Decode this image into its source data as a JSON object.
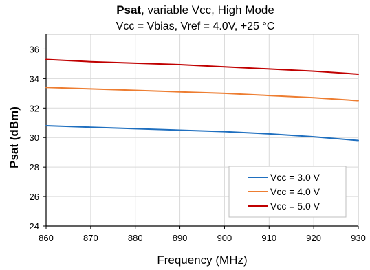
{
  "chart_data": {
    "type": "line",
    "title_bold": "Psat",
    "title_rest": ", variable Vcc, High Mode",
    "subtitle": "Vcc = Vbias, Vref = 4.0V, +25 °C",
    "xlabel": "Frequency (MHz)",
    "ylabel": "Psat (dBm)",
    "xlim": [
      860,
      930
    ],
    "ylim": [
      24,
      37
    ],
    "xticks": [
      860,
      870,
      880,
      890,
      900,
      910,
      920,
      930
    ],
    "yticks": [
      24,
      26,
      28,
      30,
      32,
      34,
      36
    ],
    "xtick_labels": [
      "860",
      "870",
      "880",
      "890",
      "900",
      "910",
      "920",
      "930"
    ],
    "ytick_labels": [
      "24",
      "26",
      "28",
      "30",
      "32",
      "34",
      "36"
    ],
    "grid": true,
    "legend_position": "bottom-right",
    "x": [
      860,
      870,
      880,
      890,
      900,
      910,
      920,
      930
    ],
    "series": [
      {
        "name": "Vcc = 3.0 V",
        "color": "#1f6fbf",
        "values": [
          30.8,
          30.7,
          30.6,
          30.5,
          30.4,
          30.25,
          30.05,
          29.8
        ]
      },
      {
        "name": "Vcc = 4.0 V",
        "color": "#ed7d31",
        "values": [
          33.4,
          33.3,
          33.2,
          33.1,
          33.0,
          32.85,
          32.7,
          32.5
        ]
      },
      {
        "name": "Vcc = 5.0 V",
        "color": "#c00000",
        "values": [
          35.3,
          35.15,
          35.05,
          34.95,
          34.8,
          34.65,
          34.5,
          34.3
        ]
      }
    ]
  }
}
